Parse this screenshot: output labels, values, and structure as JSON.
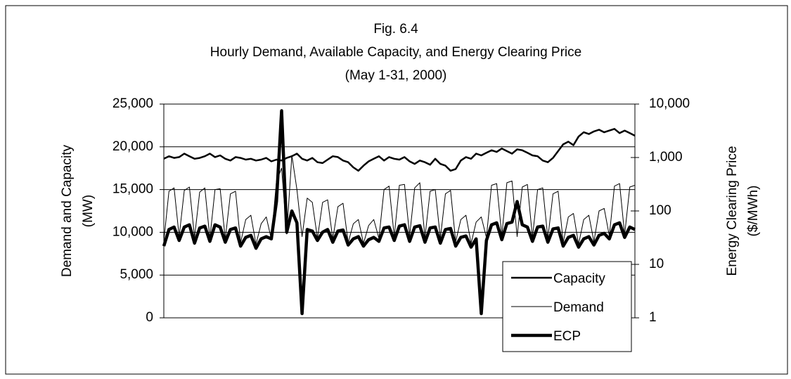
{
  "chart_data": {
    "type": "line",
    "title_lines": [
      "Fig. 6.4",
      "Hourly Demand, Available Capacity, and Energy Clearing Price",
      "(May 1-31, 2000)"
    ],
    "ylabel_lines": [
      "Demand and Capacity",
      "(MW)"
    ],
    "y2label_lines": [
      "Energy Clearing Price",
      "($/MWh)"
    ],
    "ylim": [
      0,
      25000
    ],
    "yticks": [
      0,
      {
        "value": 5000,
        "label": "5,000"
      },
      {
        "value": 10000,
        "label": "10,000"
      },
      {
        "value": 15000,
        "label": "15,000"
      },
      {
        "value": 20000,
        "label": "20,000"
      },
      {
        "value": 25000,
        "label": "25,000"
      }
    ],
    "y2lim": [
      1,
      10000
    ],
    "y2ticks": [
      1,
      10,
      100,
      {
        "value": 1000,
        "label": "1,000"
      },
      {
        "value": 10000,
        "label": "10,000"
      }
    ],
    "y2scale": "log",
    "grid": true,
    "legend": "lower-right",
    "series": [
      {
        "name": "Capacity",
        "color": "#000000",
        "width": 2.5,
        "values": [
          18600,
          18900,
          18700,
          18800,
          19200,
          18900,
          18600,
          18700,
          18900,
          19200,
          18800,
          19000,
          18600,
          18400,
          18800,
          18700,
          18500,
          18600,
          18400,
          18500,
          18700,
          18300,
          18500,
          18400,
          18700,
          18900,
          19200,
          18600,
          18400,
          18700,
          18200,
          18100,
          18500,
          18900,
          18800,
          18400,
          18200,
          17600,
          17200,
          17800,
          18300,
          18600,
          18900,
          18400,
          18800,
          18600,
          18500,
          18800,
          18300,
          18000,
          18400,
          18200,
          17900,
          18600,
          18000,
          17800,
          17200,
          17400,
          18400,
          18800,
          18600,
          19200,
          19000,
          19300,
          19600,
          19400,
          19800,
          19500,
          19200,
          19700,
          19600,
          19300,
          19000,
          18900,
          18400,
          18200,
          18700,
          19500,
          20300,
          20600,
          20200,
          21200,
          21700,
          21500,
          21800,
          22000,
          21700,
          21900,
          22100,
          21600,
          21900,
          21600,
          21300
        ]
      },
      {
        "name": "Demand",
        "color": "#000000",
        "width": 1,
        "values": [
          9000,
          14800,
          15200,
          9500,
          14900,
          15300,
          9400,
          14700,
          15200,
          9300,
          15000,
          15100,
          9200,
          14500,
          14800,
          8800,
          11500,
          12000,
          8600,
          11000,
          11800,
          9200,
          16000,
          17500,
          9800,
          19000,
          15000,
          9500,
          14000,
          13500,
          9300,
          13500,
          13800,
          9200,
          13000,
          13400,
          8800,
          11000,
          11500,
          8700,
          10800,
          11500,
          9300,
          15000,
          15400,
          9500,
          15500,
          15600,
          9600,
          15200,
          15800,
          9400,
          14800,
          15000,
          9300,
          14500,
          14900,
          8900,
          11500,
          12000,
          8700,
          11200,
          11800,
          9400,
          15500,
          15700,
          9600,
          15800,
          16000,
          9500,
          15300,
          15600,
          9400,
          15000,
          15200,
          9300,
          14500,
          14800,
          8800,
          11800,
          12200,
          8600,
          11500,
          12000,
          8900,
          12500,
          12800,
          9600,
          15400,
          15700,
          9700,
          15300,
          15500
        ]
      },
      {
        "name": "ECP",
        "color": "#000000",
        "width": 4.5,
        "axis": "y2",
        "values": [
          22,
          45,
          50,
          28,
          50,
          55,
          25,
          48,
          52,
          27,
          55,
          50,
          26,
          45,
          48,
          22,
          32,
          35,
          20,
          30,
          33,
          30,
          150,
          7500,
          40,
          100,
          60,
          1.2,
          45,
          42,
          28,
          40,
          45,
          26,
          42,
          44,
          23,
          30,
          33,
          22,
          29,
          32,
          27,
          48,
          50,
          28,
          52,
          55,
          27,
          50,
          53,
          26,
          48,
          50,
          25,
          45,
          47,
          22,
          32,
          34,
          21,
          30,
          1.2,
          28,
          55,
          60,
          29,
          58,
          62,
          150,
          55,
          50,
          27,
          50,
          52,
          26,
          46,
          48,
          22,
          32,
          35,
          21,
          30,
          33,
          23,
          35,
          38,
          30,
          55,
          60,
          32,
          50,
          45
        ]
      }
    ]
  }
}
